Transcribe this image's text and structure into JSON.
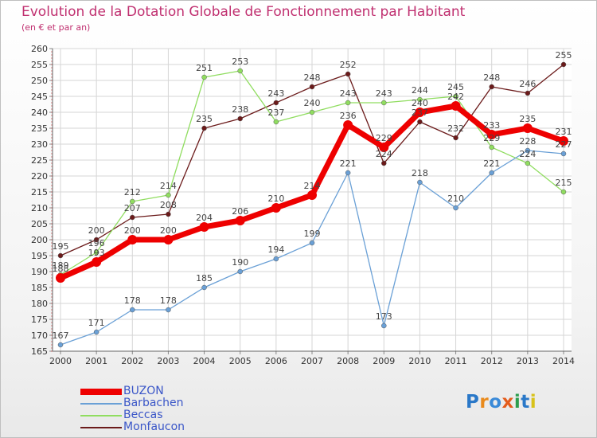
{
  "chart_data": {
    "type": "line",
    "title": "Evolution de la Dotation Globale de Fonctionnement par Habitant",
    "subtitle": "(en € et par an)",
    "xlabel": "",
    "ylabel": "",
    "categories": [
      "2000",
      "2001",
      "2002",
      "2003",
      "2004",
      "2005",
      "2006",
      "2007",
      "2008",
      "2009",
      "2010",
      "2011",
      "2012",
      "2013",
      "2014"
    ],
    "ylim": [
      165,
      260
    ],
    "ytick_step": 5,
    "grid": true,
    "legend_position": "bottom-left",
    "series": [
      {
        "name": "BUZON",
        "color": "#ee0000",
        "values": [
          188,
          193,
          200,
          200,
          204,
          206,
          210,
          214,
          236,
          229,
          240,
          242,
          233,
          235,
          231
        ]
      },
      {
        "name": "Barbachen",
        "color": "#6aa0d6",
        "values": [
          167,
          171,
          178,
          178,
          185,
          190,
          194,
          199,
          221,
          173,
          218,
          210,
          221,
          228,
          227
        ]
      },
      {
        "name": "Beccas",
        "color": "#90dd60",
        "values": [
          189,
          196,
          212,
          214,
          251,
          253,
          237,
          240,
          243,
          243,
          244,
          245,
          229,
          224,
          215
        ]
      },
      {
        "name": "Monfaucon",
        "color": "#6b1a1a",
        "values": [
          195,
          200,
          207,
          208,
          235,
          238,
          243,
          248,
          252,
          224,
          237,
          232,
          248,
          246,
          255
        ]
      }
    ]
  },
  "branding": {
    "logo_text": "Proxiti"
  }
}
